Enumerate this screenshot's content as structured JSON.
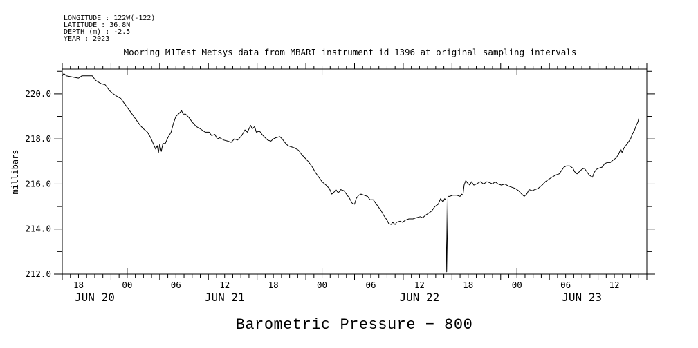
{
  "window": {
    "background": "#ffffff",
    "foreground": "#000000"
  },
  "metadata_block": {
    "longitude": "LONGITUDE : 122W(-122)",
    "latitude": "LATITUDE : 36.8N",
    "depth": "DEPTH (m) : -2.5",
    "year": "YEAR : 2023"
  },
  "title": "Mooring M1Test Metsys data from MBARI instrument id 1396 at original sampling intervals",
  "bottom_title": "Barometric Pressure − 800",
  "chart_data": {
    "type": "line",
    "title": "Mooring M1Test Metsys data from MBARI instrument id 1396 at original sampling intervals",
    "xlabel": "",
    "ylabel": "millibars",
    "line_color": "#000000",
    "grid": false,
    "legend": "none",
    "ylim": [
      212.0,
      221.1
    ],
    "y_major_tick_step": 1.0,
    "y_ticks": [
      [
        212,
        "212.0"
      ],
      [
        214,
        "214.0"
      ],
      [
        216,
        "216.0"
      ],
      [
        218,
        "218.0"
      ],
      [
        220,
        "220.0"
      ]
    ],
    "xlim_hours": [
      0,
      72
    ],
    "x_start_time": "JUN 20 16:00 2023",
    "x_minor_tick_step_hours": 1,
    "x_major_ticks": [
      [
        2,
        "18"
      ],
      [
        8,
        "00"
      ],
      [
        14,
        "06"
      ],
      [
        20,
        "12"
      ],
      [
        26,
        "18"
      ],
      [
        32,
        "00"
      ],
      [
        38,
        "06"
      ],
      [
        44,
        "12"
      ],
      [
        50,
        "18"
      ],
      [
        56,
        "00"
      ],
      [
        62,
        "06"
      ],
      [
        68,
        "12"
      ]
    ],
    "day_boundaries_hours": [
      8,
      32,
      56
    ],
    "day_labels": [
      {
        "label": "JUN 20",
        "t_center": 4
      },
      {
        "label": "JUN 21",
        "t_center": 20
      },
      {
        "label": "JUN 22",
        "t_center": 44
      },
      {
        "label": "JUN 23",
        "t_center": 64
      }
    ],
    "series": [
      {
        "name": "Barometric Pressure - 800",
        "units": "millibars",
        "points": [
          [
            0.0,
            220.8
          ],
          [
            0.2,
            220.9
          ],
          [
            0.5,
            220.8
          ],
          [
            2.0,
            220.7
          ],
          [
            2.4,
            220.8
          ],
          [
            3.7,
            220.8
          ],
          [
            4.1,
            220.6
          ],
          [
            4.8,
            220.45
          ],
          [
            5.3,
            220.4
          ],
          [
            5.8,
            220.15
          ],
          [
            6.3,
            220.0
          ],
          [
            6.7,
            219.9
          ],
          [
            7.2,
            219.8
          ],
          [
            7.8,
            219.5
          ],
          [
            8.5,
            219.15
          ],
          [
            9.1,
            218.85
          ],
          [
            9.6,
            218.6
          ],
          [
            10.0,
            218.45
          ],
          [
            10.5,
            218.3
          ],
          [
            10.9,
            218.05
          ],
          [
            11.2,
            217.8
          ],
          [
            11.5,
            217.55
          ],
          [
            11.7,
            217.7
          ],
          [
            11.85,
            217.4
          ],
          [
            12.0,
            217.75
          ],
          [
            12.2,
            217.45
          ],
          [
            12.4,
            217.8
          ],
          [
            12.7,
            217.8
          ],
          [
            13.0,
            218.05
          ],
          [
            13.4,
            218.3
          ],
          [
            13.7,
            218.7
          ],
          [
            14.0,
            219.0
          ],
          [
            14.3,
            219.1
          ],
          [
            14.7,
            219.25
          ],
          [
            14.9,
            219.1
          ],
          [
            15.2,
            219.1
          ],
          [
            15.6,
            218.95
          ],
          [
            16.0,
            218.75
          ],
          [
            16.5,
            218.55
          ],
          [
            17.0,
            218.45
          ],
          [
            17.6,
            218.3
          ],
          [
            18.1,
            218.3
          ],
          [
            18.4,
            218.15
          ],
          [
            18.8,
            218.2
          ],
          [
            19.1,
            218.0
          ],
          [
            19.4,
            218.05
          ],
          [
            19.9,
            217.95
          ],
          [
            20.4,
            217.9
          ],
          [
            20.8,
            217.85
          ],
          [
            21.2,
            218.0
          ],
          [
            21.6,
            217.95
          ],
          [
            22.1,
            218.15
          ],
          [
            22.5,
            218.4
          ],
          [
            22.8,
            218.3
          ],
          [
            23.2,
            218.6
          ],
          [
            23.4,
            218.45
          ],
          [
            23.7,
            218.55
          ],
          [
            23.9,
            218.3
          ],
          [
            24.3,
            218.35
          ],
          [
            24.6,
            218.2
          ],
          [
            25.0,
            218.05
          ],
          [
            25.3,
            217.95
          ],
          [
            25.7,
            217.9
          ],
          [
            26.0,
            218.0
          ],
          [
            26.3,
            218.05
          ],
          [
            26.8,
            218.1
          ],
          [
            27.1,
            218.0
          ],
          [
            27.4,
            217.85
          ],
          [
            27.8,
            217.7
          ],
          [
            28.2,
            217.65
          ],
          [
            28.6,
            217.6
          ],
          [
            29.1,
            217.5
          ],
          [
            29.5,
            217.3
          ],
          [
            29.9,
            217.15
          ],
          [
            30.3,
            217.0
          ],
          [
            30.8,
            216.75
          ],
          [
            31.2,
            216.5
          ],
          [
            31.6,
            216.3
          ],
          [
            32.0,
            216.1
          ],
          [
            32.5,
            215.95
          ],
          [
            32.9,
            215.8
          ],
          [
            33.2,
            215.55
          ],
          [
            33.5,
            215.65
          ],
          [
            33.7,
            215.75
          ],
          [
            34.0,
            215.6
          ],
          [
            34.3,
            215.75
          ],
          [
            34.7,
            215.7
          ],
          [
            35.0,
            215.55
          ],
          [
            35.4,
            215.35
          ],
          [
            35.7,
            215.15
          ],
          [
            36.0,
            215.1
          ],
          [
            36.2,
            215.35
          ],
          [
            36.5,
            215.5
          ],
          [
            36.8,
            215.55
          ],
          [
            37.2,
            215.5
          ],
          [
            37.6,
            215.45
          ],
          [
            37.9,
            215.3
          ],
          [
            38.3,
            215.3
          ],
          [
            38.6,
            215.15
          ],
          [
            38.9,
            215.0
          ],
          [
            39.3,
            214.8
          ],
          [
            39.6,
            214.6
          ],
          [
            40.0,
            214.4
          ],
          [
            40.2,
            214.25
          ],
          [
            40.5,
            214.2
          ],
          [
            40.7,
            214.3
          ],
          [
            41.0,
            214.2
          ],
          [
            41.2,
            214.3
          ],
          [
            41.6,
            214.35
          ],
          [
            41.9,
            214.3
          ],
          [
            42.3,
            214.4
          ],
          [
            42.7,
            214.45
          ],
          [
            43.2,
            214.45
          ],
          [
            43.6,
            214.5
          ],
          [
            44.1,
            214.55
          ],
          [
            44.4,
            214.5
          ],
          [
            44.7,
            214.6
          ],
          [
            45.1,
            214.7
          ],
          [
            45.5,
            214.8
          ],
          [
            45.9,
            215.0
          ],
          [
            46.3,
            215.1
          ],
          [
            46.6,
            215.35
          ],
          [
            46.9,
            215.2
          ],
          [
            47.1,
            215.35
          ],
          [
            47.25,
            215.3
          ],
          [
            47.35,
            212.1
          ],
          [
            47.5,
            215.45
          ],
          [
            47.7,
            215.45
          ],
          [
            48.1,
            215.5
          ],
          [
            48.6,
            215.5
          ],
          [
            49.0,
            215.45
          ],
          [
            49.2,
            215.55
          ],
          [
            49.35,
            215.5
          ],
          [
            49.5,
            215.95
          ],
          [
            49.7,
            216.15
          ],
          [
            49.9,
            216.05
          ],
          [
            50.2,
            215.95
          ],
          [
            50.4,
            216.1
          ],
          [
            50.7,
            215.95
          ],
          [
            51.0,
            216.0
          ],
          [
            51.5,
            216.1
          ],
          [
            51.9,
            216.0
          ],
          [
            52.3,
            216.1
          ],
          [
            52.7,
            216.05
          ],
          [
            53.0,
            216.0
          ],
          [
            53.3,
            216.1
          ],
          [
            53.7,
            216.0
          ],
          [
            54.1,
            215.95
          ],
          [
            54.5,
            216.0
          ],
          [
            55.0,
            215.9
          ],
          [
            55.4,
            215.85
          ],
          [
            55.8,
            215.8
          ],
          [
            56.2,
            215.7
          ],
          [
            56.6,
            215.55
          ],
          [
            56.9,
            215.45
          ],
          [
            57.2,
            215.55
          ],
          [
            57.5,
            215.75
          ],
          [
            57.9,
            215.7
          ],
          [
            58.2,
            215.75
          ],
          [
            58.6,
            215.8
          ],
          [
            59.1,
            215.95
          ],
          [
            59.5,
            216.1
          ],
          [
            59.9,
            216.2
          ],
          [
            60.3,
            216.3
          ],
          [
            60.8,
            216.4
          ],
          [
            61.2,
            216.45
          ],
          [
            61.5,
            216.6
          ],
          [
            61.8,
            216.75
          ],
          [
            62.1,
            216.8
          ],
          [
            62.5,
            216.8
          ],
          [
            62.9,
            216.7
          ],
          [
            63.1,
            216.55
          ],
          [
            63.4,
            216.45
          ],
          [
            63.7,
            216.55
          ],
          [
            64.0,
            216.65
          ],
          [
            64.3,
            216.7
          ],
          [
            64.6,
            216.55
          ],
          [
            64.9,
            216.4
          ],
          [
            65.3,
            216.3
          ],
          [
            65.5,
            216.5
          ],
          [
            65.8,
            216.65
          ],
          [
            66.1,
            216.7
          ],
          [
            66.5,
            216.75
          ],
          [
            66.8,
            216.9
          ],
          [
            67.1,
            216.95
          ],
          [
            67.5,
            216.95
          ],
          [
            67.8,
            217.05
          ],
          [
            68.2,
            217.15
          ],
          [
            68.5,
            217.3
          ],
          [
            68.8,
            217.55
          ],
          [
            68.95,
            217.4
          ],
          [
            69.2,
            217.6
          ],
          [
            69.4,
            217.7
          ],
          [
            69.7,
            217.85
          ],
          [
            70.0,
            218.0
          ],
          [
            70.2,
            218.2
          ],
          [
            70.5,
            218.4
          ],
          [
            70.7,
            218.6
          ],
          [
            70.9,
            218.75
          ],
          [
            71.0,
            218.9
          ]
        ]
      }
    ]
  }
}
